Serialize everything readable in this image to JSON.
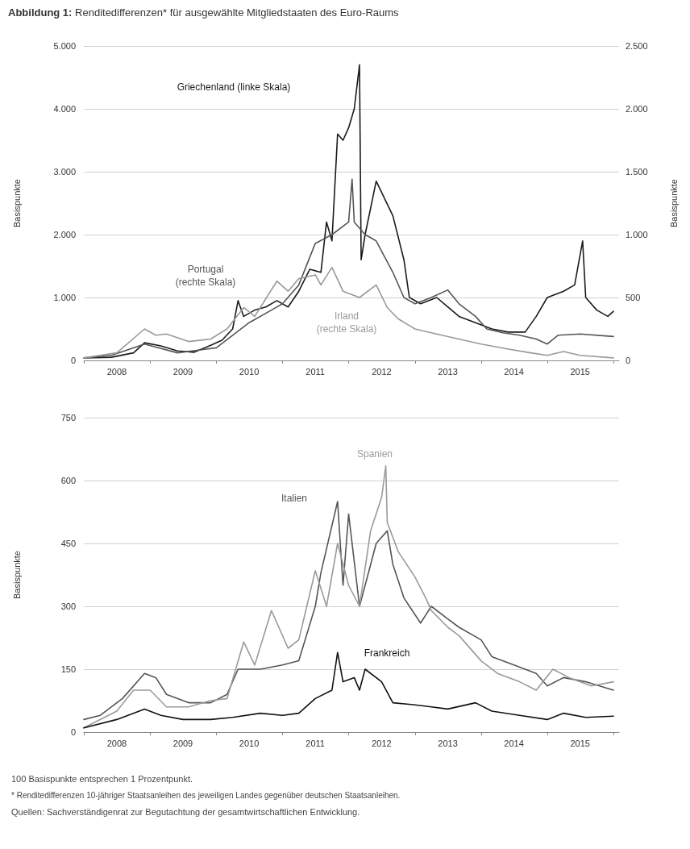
{
  "chart_data": [
    {
      "type": "line",
      "title": "Abbildung 1: Renditedifferenzen* für ausgewählte Mitgliedstaaten des Euro-Raums",
      "ylabel": "Basispunkte",
      "y2label": "Basispunkte",
      "xlim": [
        "2008-01",
        "2016-02"
      ],
      "xticks": [
        {
          "value": "2008-01",
          "label": null
        },
        {
          "value": "2008-07",
          "label": "2008"
        },
        {
          "value": "2009-01",
          "label": null
        },
        {
          "value": "2009-07",
          "label": "2009"
        },
        {
          "value": "2010-01",
          "label": null
        },
        {
          "value": "2010-07",
          "label": "2010"
        },
        {
          "value": "2011-01",
          "label": null
        },
        {
          "value": "2011-07",
          "label": "2011"
        },
        {
          "value": "2012-01",
          "label": null
        },
        {
          "value": "2012-07",
          "label": "2012"
        },
        {
          "value": "2013-01",
          "label": null
        },
        {
          "value": "2013-07",
          "label": "2013"
        },
        {
          "value": "2014-01",
          "label": null
        },
        {
          "value": "2014-07",
          "label": "2014"
        },
        {
          "value": "2015-01",
          "label": null
        },
        {
          "value": "2015-07",
          "label": "2015"
        },
        {
          "value": "2016-01",
          "label": null
        }
      ],
      "ylim": [
        0,
        5000
      ],
      "yticks": [
        0,
        {
          "value": 1000,
          "label": "1.000"
        },
        {
          "value": 2000,
          "label": "2.000"
        },
        {
          "value": 3000,
          "label": "3.000"
        },
        {
          "value": 4000,
          "label": "4.000"
        },
        {
          "value": 5000,
          "label": "5.000"
        }
      ],
      "y2lim": [
        0,
        2500
      ],
      "y2ticks": [
        0,
        500,
        {
          "value": 1000,
          "label": "1.000"
        },
        {
          "value": 1500,
          "label": "1.500"
        },
        {
          "value": 2000,
          "label": "2.000"
        },
        {
          "value": 2500,
          "label": "2.500"
        }
      ],
      "grid": "y",
      "legend": false,
      "marker": "none",
      "line_style": "solid",
      "series": [
        {
          "name": "Griechenland (linke Skala)",
          "color": "#1a1a1a",
          "x": [
            "2008-01",
            "2008-06",
            "2008-10",
            "2008-12",
            "2009-03",
            "2009-06",
            "2009-09",
            "2009-12",
            "2010-02",
            "2010-04",
            "2010-05",
            "2010-06",
            "2010-08",
            "2010-10",
            "2010-12",
            "2011-02",
            "2011-04",
            "2011-06",
            "2011-08",
            "2011-09",
            "2011-10",
            "2011-11",
            "2011-12",
            "2012-01",
            "2012-02",
            "2012-03-01",
            "2012-03-10",
            "2012-04",
            "2012-06",
            "2012-09",
            "2012-11",
            "2012-12",
            "2013-02",
            "2013-05",
            "2013-07",
            "2013-09",
            "2013-12",
            "2014-03",
            "2014-06",
            "2014-09",
            "2014-11",
            "2015-01",
            "2015-04",
            "2015-06",
            "2015-07-15",
            "2015-08",
            "2015-10",
            "2015-12",
            "2016-01"
          ],
          "values": [
            40,
            50,
            120,
            280,
            230,
            150,
            130,
            240,
            320,
            500,
            950,
            700,
            800,
            850,
            950,
            850,
            1100,
            1450,
            1400,
            2200,
            1900,
            3600,
            3500,
            3700,
            4000,
            4700,
            1600,
            2000,
            2850,
            2300,
            1600,
            1000,
            900,
            1000,
            850,
            700,
            600,
            500,
            450,
            450,
            700,
            1000,
            1100,
            1200,
            1900,
            1000,
            800,
            700,
            780
          ]
        },
        {
          "name": "Portugal (rechte Skala)",
          "color": "#555555",
          "axis": "y2",
          "x": [
            "2008-01",
            "2008-06",
            "2008-12",
            "2009-06",
            "2010-01",
            "2010-04",
            "2010-07",
            "2010-11",
            "2011-01",
            "2011-04",
            "2011-07",
            "2011-10",
            "2012-01",
            "2012-01-20",
            "2012-02",
            "2012-04",
            "2012-06",
            "2012-09",
            "2012-11",
            "2013-01",
            "2013-04",
            "2013-07",
            "2013-09",
            "2013-12",
            "2014-02",
            "2014-05",
            "2014-08",
            "2014-11",
            "2015-01",
            "2015-03",
            "2015-07",
            "2016-01"
          ],
          "values": [
            20,
            40,
            130,
            60,
            100,
            200,
            300,
            400,
            450,
            600,
            930,
            1000,
            1100,
            1440,
            1100,
            1000,
            950,
            700,
            500,
            450,
            500,
            560,
            450,
            350,
            250,
            220,
            200,
            170,
            130,
            200,
            210,
            190
          ]
        },
        {
          "name": "Irland (rechte Skala)",
          "color": "#999999",
          "axis": "y2",
          "x": [
            "2008-01",
            "2008-07",
            "2008-12",
            "2009-02",
            "2009-04",
            "2009-08",
            "2009-12",
            "2010-03",
            "2010-06",
            "2010-08",
            "2010-12",
            "2011-02",
            "2011-04",
            "2011-07",
            "2011-08",
            "2011-10",
            "2011-12",
            "2012-03",
            "2012-06",
            "2012-08",
            "2012-10",
            "2013-01",
            "2013-04",
            "2013-08",
            "2014-01",
            "2014-06",
            "2014-10",
            "2015-01",
            "2015-04",
            "2015-07",
            "2016-01"
          ],
          "values": [
            20,
            60,
            250,
            200,
            210,
            150,
            170,
            250,
            420,
            350,
            630,
            550,
            650,
            680,
            600,
            740,
            550,
            500,
            600,
            420,
            330,
            250,
            220,
            180,
            130,
            90,
            60,
            40,
            70,
            40,
            20
          ]
        }
      ]
    },
    {
      "type": "line",
      "ylabel": "Basispunkte",
      "xlim": [
        "2008-01",
        "2016-02"
      ],
      "xticks": [
        {
          "value": "2008-01",
          "label": null
        },
        {
          "value": "2008-07",
          "label": "2008"
        },
        {
          "value": "2009-01",
          "label": null
        },
        {
          "value": "2009-07",
          "label": "2009"
        },
        {
          "value": "2010-01",
          "label": null
        },
        {
          "value": "2010-07",
          "label": "2010"
        },
        {
          "value": "2011-01",
          "label": null
        },
        {
          "value": "2011-07",
          "label": "2011"
        },
        {
          "value": "2012-01",
          "label": null
        },
        {
          "value": "2012-07",
          "label": "2012"
        },
        {
          "value": "2013-01",
          "label": null
        },
        {
          "value": "2013-07",
          "label": "2013"
        },
        {
          "value": "2014-01",
          "label": null
        },
        {
          "value": "2014-07",
          "label": "2014"
        },
        {
          "value": "2015-01",
          "label": null
        },
        {
          "value": "2015-07",
          "label": "2015"
        },
        {
          "value": "2016-01",
          "label": null
        }
      ],
      "ylim": [
        0,
        750
      ],
      "yticks": [
        0,
        150,
        300,
        450,
        600,
        750
      ],
      "grid": "y",
      "legend": false,
      "marker": "none",
      "line_style": "solid",
      "annotations": [
        "100 Basispunkte entsprechen 1 Prozentpunkt.",
        "* Renditedifferenzen 10-jähriger Staatsanleihen des jeweiligen Landes gegenüber deutschen Staatsanleihen.",
        "Quellen: Sachverständigenrat zur Begutachtung der gesamtwirtschaftlichen Entwicklung."
      ],
      "series": [
        {
          "name": "Italien",
          "color": "#555555",
          "x": [
            "2008-01",
            "2008-04",
            "2008-08",
            "2008-12",
            "2009-02",
            "2009-04",
            "2009-08",
            "2009-12",
            "2010-03",
            "2010-05",
            "2010-09",
            "2011-01",
            "2011-04",
            "2011-07",
            "2011-08",
            "2011-11",
            "2011-12",
            "2012-01",
            "2012-03",
            "2012-04",
            "2012-06",
            "2012-08",
            "2012-09",
            "2012-11",
            "2013-02",
            "2013-04",
            "2013-07",
            "2013-09",
            "2014-01",
            "2014-03",
            "2014-07",
            "2014-11",
            "2015-01",
            "2015-04",
            "2015-08",
            "2016-01"
          ],
          "values": [
            30,
            40,
            80,
            140,
            130,
            90,
            70,
            70,
            90,
            150,
            150,
            160,
            170,
            300,
            380,
            550,
            350,
            520,
            300,
            350,
            450,
            480,
            400,
            320,
            260,
            300,
            270,
            250,
            220,
            180,
            160,
            140,
            110,
            130,
            120,
            100
          ]
        },
        {
          "name": "Spanien",
          "color": "#9a9a9a",
          "x": [
            "2008-01",
            "2008-07",
            "2008-10",
            "2009-01",
            "2009-04",
            "2009-08",
            "2009-12",
            "2010-03",
            "2010-06",
            "2010-08",
            "2010-11",
            "2011-02",
            "2011-04",
            "2011-07",
            "2011-09",
            "2011-11",
            "2012-01",
            "2012-03",
            "2012-05",
            "2012-07",
            "2012-07-24",
            "2012-08",
            "2012-10",
            "2013-01",
            "2013-03",
            "2013-04",
            "2013-07",
            "2013-09",
            "2014-01",
            "2014-04",
            "2014-08",
            "2014-11",
            "2015-02",
            "2015-05",
            "2015-09",
            "2016-01"
          ],
          "values": [
            10,
            50,
            100,
            100,
            60,
            60,
            75,
            80,
            215,
            160,
            290,
            200,
            220,
            385,
            300,
            450,
            350,
            300,
            480,
            560,
            635,
            500,
            430,
            370,
            320,
            290,
            250,
            230,
            170,
            140,
            120,
            100,
            150,
            130,
            110,
            120
          ]
        },
        {
          "name": "Frankreich",
          "color": "#111111",
          "x": [
            "2008-01",
            "2008-07",
            "2008-12",
            "2009-03",
            "2009-07",
            "2009-12",
            "2010-04",
            "2010-09",
            "2011-01",
            "2011-04",
            "2011-07",
            "2011-10",
            "2011-11",
            "2011-12",
            "2012-02",
            "2012-03",
            "2012-04",
            "2012-07",
            "2012-09",
            "2013-01",
            "2013-04",
            "2013-07",
            "2013-12",
            "2014-03",
            "2014-08",
            "2015-01",
            "2015-04",
            "2015-08",
            "2016-01"
          ],
          "values": [
            10,
            30,
            55,
            40,
            30,
            30,
            35,
            45,
            40,
            45,
            80,
            100,
            190,
            120,
            130,
            100,
            150,
            120,
            70,
            65,
            60,
            55,
            70,
            50,
            40,
            30,
            45,
            35,
            38
          ]
        }
      ]
    }
  ]
}
